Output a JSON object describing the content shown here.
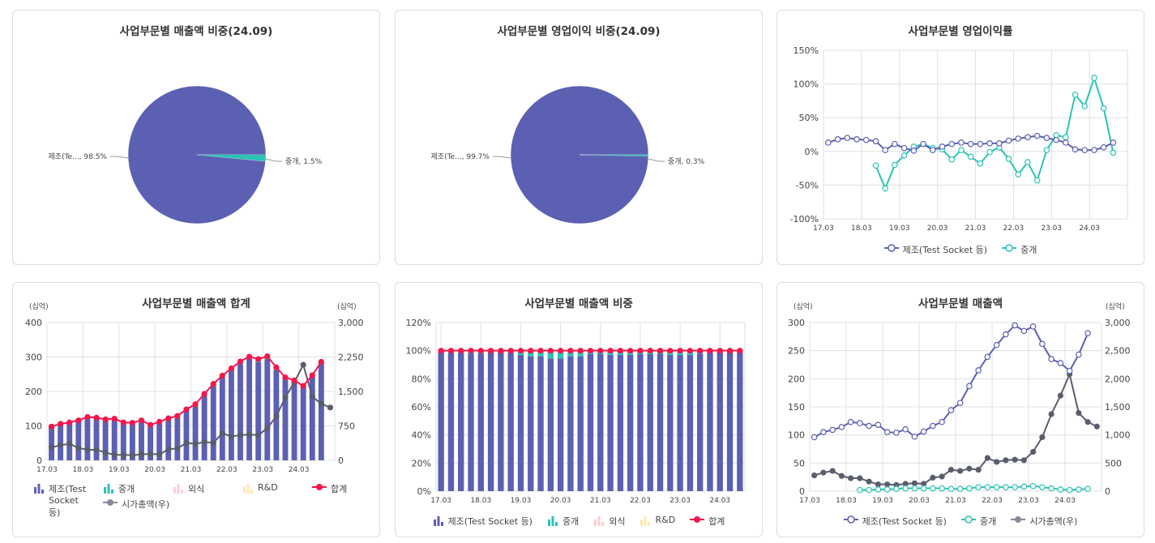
{
  "colors": {
    "manufacturing": "#5c60b3",
    "brokerage": "#2bc4b4",
    "food": "#f9cfd3",
    "rnd": "#fde9b0",
    "total": "#f5164a",
    "market_cap": "#5a5d6e"
  },
  "x_ticks": [
    "17.03",
    "18.03",
    "19.03",
    "20.03",
    "21.03",
    "22.03",
    "23.03",
    "24.03"
  ],
  "chart_data": [
    {
      "id": "pie-revenue",
      "type": "pie",
      "title": "사업부문별 매출액 비중(24.09)",
      "slices": [
        {
          "name": "제조(Test Socket 등)",
          "label": "제조(Te..., 98.5%",
          "value": 98.5
        },
        {
          "name": "중개",
          "label": "중개, 1.5%",
          "value": 1.5
        }
      ]
    },
    {
      "id": "pie-op-profit",
      "type": "pie",
      "title": "사업부문별 영업이익 비중(24.09)",
      "slices": [
        {
          "name": "제조(Test Socket 등)",
          "label": "제조(Te..., 99.7%",
          "value": 99.7
        },
        {
          "name": "중개",
          "label": "중개, 0.3%",
          "value": 0.3
        }
      ]
    },
    {
      "id": "line-op-margin",
      "type": "line",
      "title": "사업부문별 영업이익률",
      "ylim": [
        -100,
        150
      ],
      "yticks": [
        "150%",
        "100%",
        "50%",
        "0%",
        "-50%",
        "-100%"
      ],
      "legend": [
        "제조(Test Socket 등)",
        "중개"
      ],
      "series": [
        {
          "name": "제조(Test Socket 등)",
          "values": [
            13,
            18,
            20,
            18,
            17,
            15,
            2,
            11,
            5,
            1,
            11,
            2,
            7,
            11,
            13,
            11,
            11,
            12,
            12,
            16,
            19,
            21,
            23,
            20,
            17,
            13,
            3,
            2,
            2,
            6,
            13
          ]
        },
        {
          "name": "중개",
          "values": [
            null,
            null,
            null,
            null,
            null,
            -21,
            -55,
            -20,
            -6,
            7,
            11,
            5,
            3,
            -12,
            2,
            -8,
            -18,
            -1,
            6,
            -11,
            -34,
            -16,
            -43,
            2,
            24,
            21,
            84,
            67,
            109,
            64,
            -2
          ]
        }
      ]
    },
    {
      "id": "combo-revenue-total",
      "type": "bar",
      "title": "사업부문별 매출액 합계",
      "unit_left": "(십억)",
      "unit_right": "(십억)",
      "ylim": [
        0,
        400
      ],
      "y2lim": [
        0,
        3000
      ],
      "yticks": [
        "400",
        "300",
        "200",
        "100",
        "0"
      ],
      "y2ticks": [
        "3,000",
        "2,250",
        "1,500",
        "750",
        "0"
      ],
      "legend": [
        "제조(Test Socket 등)",
        "중개",
        "외식",
        "R&D",
        "합계",
        "시가총액(우)"
      ],
      "series": [
        {
          "name": "제조(Test Socket 등)",
          "values": [
            96,
            105,
            109,
            114,
            123,
            121,
            116,
            118,
            105,
            104,
            110,
            97,
            106,
            116,
            123,
            144,
            157,
            187,
            215,
            239,
            260,
            279,
            295,
            285,
            293,
            262,
            235,
            228,
            214,
            243,
            281
          ]
        },
        {
          "name": "중개",
          "values": [
            null,
            null,
            null,
            null,
            null,
            2,
            2,
            3,
            3,
            4,
            5,
            5,
            5,
            5,
            5,
            4,
            4,
            5,
            7,
            7,
            7,
            7,
            7,
            8,
            9,
            7,
            5,
            3,
            2,
            3,
            4
          ]
        },
        {
          "name": "합계",
          "values": [
            98,
            106,
            110,
            116,
            126,
            124,
            119,
            121,
            110,
            109,
            116,
            103,
            112,
            122,
            129,
            148,
            163,
            193,
            222,
            246,
            267,
            287,
            301,
            294,
            302,
            270,
            241,
            232,
            216,
            247,
            286
          ]
        },
        {
          "name": "시가총액(우)",
          "axis": "right",
          "values": [
            280,
            330,
            360,
            270,
            230,
            230,
            170,
            120,
            120,
            110,
            130,
            140,
            130,
            240,
            260,
            380,
            360,
            400,
            380,
            590,
            520,
            550,
            560,
            550,
            700,
            960,
            1370,
            1700,
            2080,
            1390,
            1230,
            1150
          ]
        }
      ]
    },
    {
      "id": "stacked-revenue-share",
      "type": "bar",
      "title": "사업부문별 매출액 비중",
      "ylim": [
        0,
        120
      ],
      "yticks": [
        "120%",
        "100%",
        "80%",
        "60%",
        "40%",
        "20%",
        "0%"
      ],
      "legend": [
        "제조(Test Socket 등)",
        "중개",
        "외식",
        "R&D",
        "합계"
      ],
      "series": [
        {
          "name": "제조(Test Socket 등)",
          "values": [
            99.5,
            98.5,
            98.5,
            98,
            98,
            99,
            99,
            98.5,
            97,
            96,
            96,
            94.5,
            94.5,
            96,
            96,
            97.5,
            97.5,
            97,
            97,
            97,
            97.5,
            97.5,
            98,
            97,
            97,
            97,
            98,
            98.5,
            99,
            99,
            99
          ]
        },
        {
          "name": "합계",
          "values": [
            100,
            100,
            100,
            100,
            100,
            100,
            100,
            100,
            100,
            100,
            100,
            100,
            100,
            100,
            100,
            100,
            100,
            100,
            100,
            100,
            100,
            100,
            100,
            100,
            100,
            100,
            100,
            100,
            100,
            100,
            100
          ]
        }
      ]
    },
    {
      "id": "line-revenue",
      "type": "line",
      "title": "사업부문별 매출액",
      "unit_left": "(십억)",
      "unit_right": "(십억)",
      "ylim": [
        0,
        300
      ],
      "y2lim": [
        0,
        3000
      ],
      "yticks": [
        "300",
        "250",
        "200",
        "150",
        "100",
        "50",
        "0"
      ],
      "y2ticks": [
        "3,000",
        "2,500",
        "2,000",
        "1,500",
        "1,000",
        "500",
        "0"
      ],
      "legend": [
        "제조(Test Socket 등)",
        "중개",
        "시가총액(우)"
      ],
      "series": [
        {
          "name": "제조(Test Socket 등)",
          "values": [
            96,
            105,
            109,
            114,
            123,
            121,
            116,
            118,
            105,
            104,
            110,
            97,
            106,
            116,
            123,
            144,
            157,
            187,
            215,
            239,
            260,
            279,
            295,
            285,
            293,
            262,
            235,
            228,
            214,
            243,
            281
          ]
        },
        {
          "name": "중개",
          "values": [
            null,
            null,
            null,
            null,
            null,
            2,
            2,
            3,
            3,
            4,
            5,
            5,
            5,
            5,
            5,
            4,
            4,
            5,
            7,
            7,
            7,
            7,
            7,
            8,
            9,
            7,
            5,
            3,
            2,
            3,
            4
          ]
        },
        {
          "name": "시가총액(우)",
          "axis": "right",
          "values": [
            280,
            330,
            360,
            270,
            230,
            230,
            170,
            120,
            120,
            110,
            130,
            140,
            130,
            240,
            260,
            380,
            360,
            400,
            380,
            590,
            520,
            550,
            560,
            550,
            700,
            960,
            1370,
            1700,
            2080,
            1390,
            1230,
            1150
          ]
        }
      ]
    }
  ]
}
